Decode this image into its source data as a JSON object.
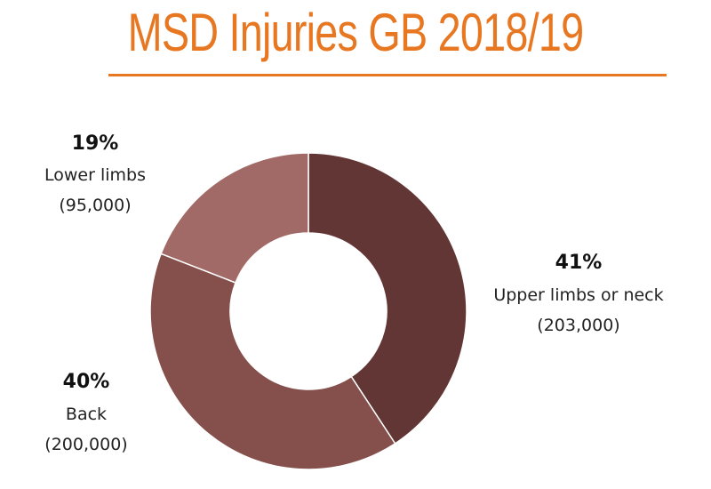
{
  "title": "MSD Injuries GB 2018/19",
  "chart_data": {
    "type": "pie",
    "donut": true,
    "title": "MSD Injuries GB 2018/19",
    "slices": [
      {
        "label": "Upper limbs or neck",
        "percent": "41%",
        "count": "(203,000)",
        "value": 203000,
        "color": "#633636"
      },
      {
        "label": "Back",
        "percent": "40%",
        "count": "(200,000)",
        "value": 200000,
        "color": "#854f4b"
      },
      {
        "label": "Lower limbs",
        "percent": "19%",
        "count": "(95,000)",
        "value": 95000,
        "color": "#a26a66"
      }
    ],
    "legend": "none"
  }
}
